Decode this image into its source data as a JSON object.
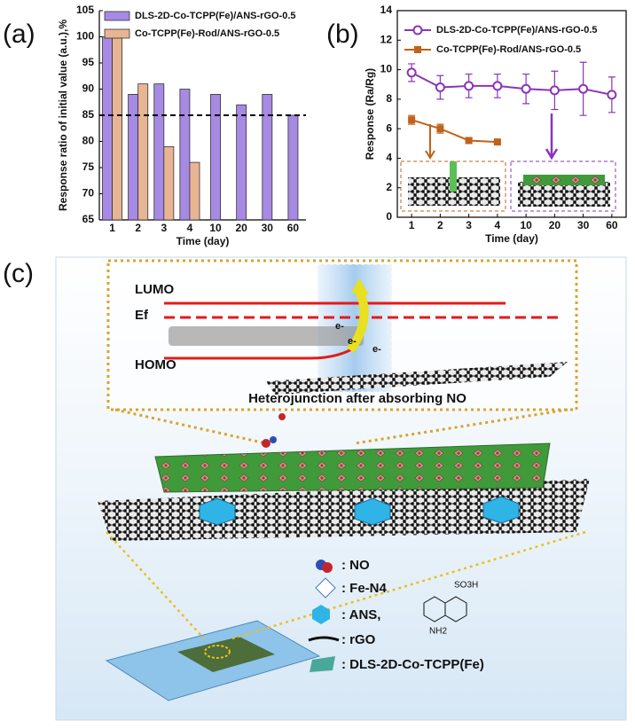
{
  "chart_data": [
    {
      "type": "bar",
      "panel": "(a)",
      "xlabel": "Time (day)",
      "ylabel": "Response ratio of initial value (a.u.),%",
      "categories": [
        "1",
        "2",
        "3",
        "4",
        "10",
        "20",
        "30",
        "60"
      ],
      "series": [
        {
          "name": "DLS-2D-Co-TCPP(Fe)/ANS-rGO-0.5",
          "color": "#a68ae3",
          "values": [
            100,
            89,
            91,
            90,
            89,
            87,
            89,
            85
          ]
        },
        {
          "name": "Co-TCPP(Fe)-Rod/ANS-rGO-0.5",
          "color": "#e8b594",
          "values": [
            100,
            91,
            79,
            76,
            null,
            null,
            null,
            null
          ]
        }
      ],
      "reference_line": 85,
      "ylim": [
        65,
        105
      ],
      "yticks": [
        65,
        70,
        75,
        80,
        85,
        90,
        95,
        100,
        105
      ]
    },
    {
      "type": "line",
      "panel": "(b)",
      "xlabel": "Time (day)",
      "ylabel": "Response (Ra/Rg)",
      "categories": [
        "1",
        "2",
        "3",
        "4",
        "10",
        "20",
        "30",
        "60"
      ],
      "series": [
        {
          "name": "DLS-2D-Co-TCPP(Fe)/ANS-rGO-0.5",
          "color": "#8a35b8",
          "marker": "circle",
          "values": [
            9.8,
            8.8,
            8.9,
            8.9,
            8.7,
            8.6,
            8.7,
            8.3
          ],
          "errors": [
            0.6,
            0.8,
            0.8,
            0.8,
            1.0,
            1.3,
            1.8,
            1.2
          ]
        },
        {
          "name": "Co-TCPP(Fe)-Rod/ANS-rGO-0.5",
          "color": "#c0621a",
          "marker": "square",
          "values": [
            6.6,
            6.0,
            5.2,
            5.1,
            null,
            null,
            null,
            null
          ],
          "errors": [
            0.3,
            0.3,
            0.2,
            0.1,
            null,
            null,
            null,
            null
          ]
        }
      ],
      "ylim": [
        0,
        14
      ],
      "yticks": [
        0,
        2,
        4,
        6,
        8,
        10,
        12,
        14
      ]
    }
  ],
  "diagram": {
    "panel": "(c)",
    "levels": {
      "lumo": "LUMO",
      "fermi": "Ef",
      "homo": "HOMO"
    },
    "electrons": [
      "e-",
      "e-",
      "e-"
    ],
    "caption": "Heterojunction after absorbing NO",
    "legend": [
      ": NO",
      ": Fe-N4",
      ": ANS,",
      ": rGO",
      ": DLS-2D-Co-TCPP(Fe)"
    ],
    "ans_groups": [
      "SO3H",
      "NH2"
    ]
  }
}
